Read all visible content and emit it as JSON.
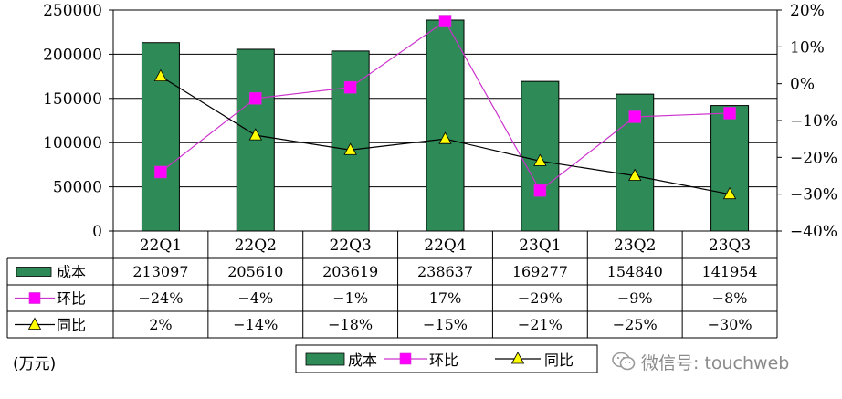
{
  "chart_data": {
    "type": "bar+line",
    "categories": [
      "22Q1",
      "22Q2",
      "22Q3",
      "22Q4",
      "23Q1",
      "23Q2",
      "23Q3"
    ],
    "series": [
      {
        "name": "成本",
        "type": "bar",
        "axis": "left",
        "color": "#2e8b57",
        "values": [
          213097,
          205610,
          203619,
          238637,
          169277,
          154840,
          141954
        ],
        "labels": [
          "213097",
          "205610",
          "203619",
          "238637",
          "169277",
          "154840",
          "141954"
        ]
      },
      {
        "name": "环比",
        "type": "line",
        "axis": "right",
        "color": "#cc33cc",
        "marker_color": "#ff00ff",
        "marker": "square",
        "values": [
          -24,
          -4,
          -1,
          17,
          -29,
          -9,
          -8
        ],
        "labels": [
          "-24%",
          "-4%",
          "-1%",
          "17%",
          "-29%",
          "-9%",
          "-8%"
        ]
      },
      {
        "name": "同比",
        "type": "line",
        "axis": "right",
        "color": "#000000",
        "marker_color": "#ffff00",
        "marker": "triangle",
        "values": [
          2,
          -14,
          -18,
          -15,
          -21,
          -25,
          -30
        ],
        "labels": [
          "2%",
          "-14%",
          "-18%",
          "-15%",
          "-21%",
          "-25%",
          "-30%"
        ]
      }
    ],
    "y_left": {
      "min": 0,
      "max": 250000,
      "ticks": [
        "0",
        "50000",
        "100000",
        "150000",
        "200000",
        "250000"
      ]
    },
    "y_right": {
      "min": -40,
      "max": 20,
      "ticks": [
        "-40%",
        "-30%",
        "-20%",
        "-10%",
        "0%",
        "10%",
        "20%"
      ]
    },
    "unit_label": "(万元)",
    "legend": [
      "成本",
      "环比",
      "同比"
    ],
    "legend_position": "bottom"
  },
  "watermark": "微信号: touchweb"
}
